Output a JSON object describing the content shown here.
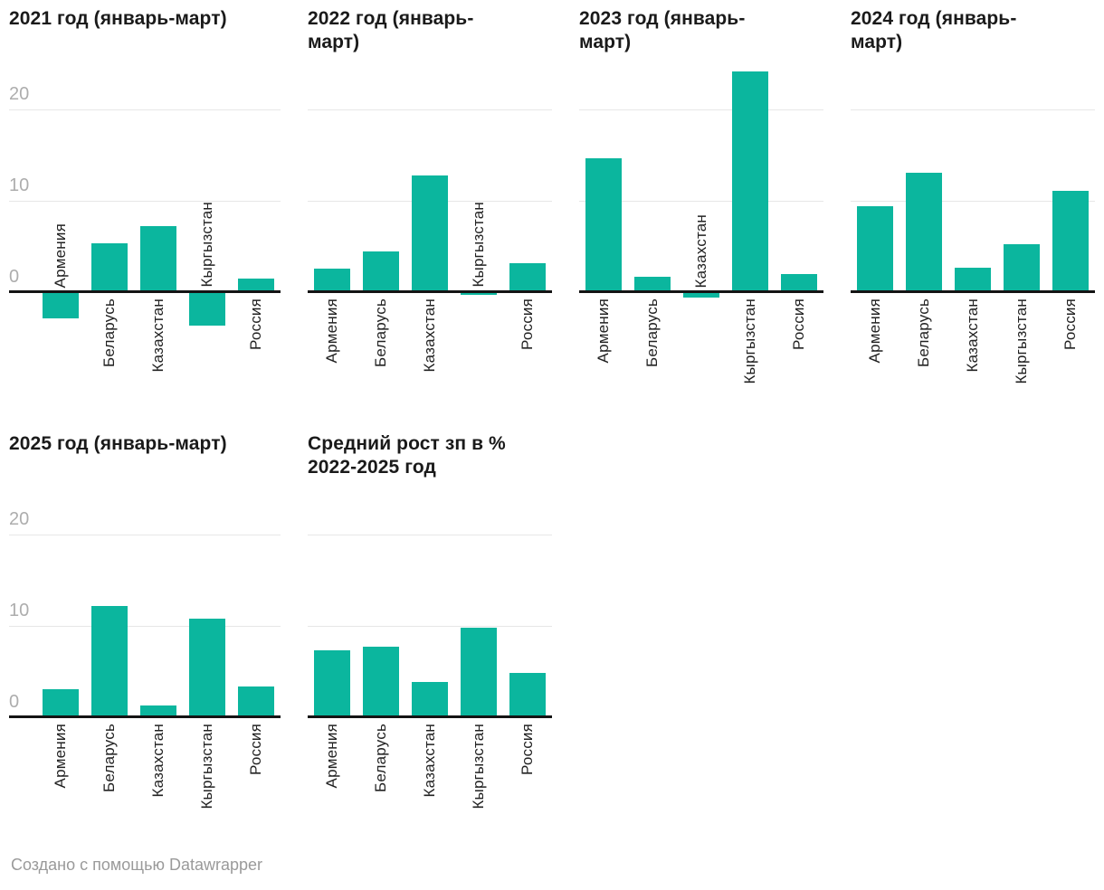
{
  "footer": {
    "credit": "Создано с помощью Datawrapper"
  },
  "colors": {
    "bar": "#0bb69e",
    "axis": "#141414",
    "gridline": "#e7e7e7",
    "tick_text": "#adadad",
    "title_text": "#1a1a1a",
    "label_text": "#222222",
    "footer_text": "#9a9a9a"
  },
  "chart_data": {
    "type": "bar",
    "small_multiples": true,
    "unit": "%",
    "categories": [
      "Армения",
      "Беларусь",
      "Казахстан",
      "Кыргызстан",
      "Россия"
    ],
    "y_ticks": [
      "0",
      "10",
      "20"
    ],
    "ylim": [
      -5,
      26
    ],
    "gridlines_at": [
      10,
      20
    ],
    "baseline": 0,
    "legend": "none",
    "panels": [
      {
        "title": "2021 год (январь-март)",
        "show_y_ticks": true,
        "values": [
          -2.9,
          5.4,
          7.3,
          -3.7,
          1.5
        ]
      },
      {
        "title": "2022 год (январь-\nмарт)",
        "show_y_ticks": false,
        "values": [
          2.6,
          4.5,
          12.8,
          -0.3,
          3.2
        ]
      },
      {
        "title": "2023 год (январь-\nмарт)",
        "show_y_ticks": false,
        "values": [
          14.7,
          1.7,
          -0.6,
          24.3,
          2.0
        ]
      },
      {
        "title": "2024 год (январь-\nмарт)",
        "show_y_ticks": false,
        "values": [
          9.5,
          13.1,
          2.7,
          5.3,
          11.1
        ]
      },
      {
        "title": "2025 год (январь-март)",
        "show_y_ticks": true,
        "values": [
          3.1,
          12.2,
          1.3,
          10.8,
          3.4
        ]
      },
      {
        "title": "Средний рост зп в %\n2022-2025 год",
        "show_y_ticks": false,
        "values": [
          7.4,
          7.8,
          3.9,
          9.9,
          4.9
        ]
      }
    ]
  }
}
